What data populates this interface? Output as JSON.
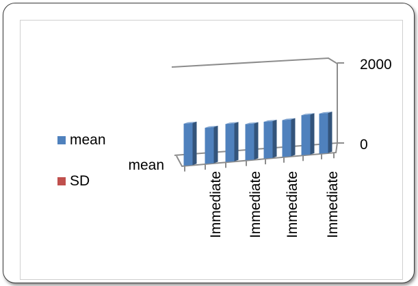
{
  "chart_data": {
    "type": "bar",
    "style": "3d-column",
    "categories": [
      "mean",
      "Immediate",
      "",
      "Immediate",
      "",
      "Immediate",
      "",
      "Immediate"
    ],
    "series": [
      {
        "name": "mean",
        "values": [
          1050,
          900,
          950,
          900,
          920,
          920,
          1000,
          1000
        ],
        "color": "#4f81bd"
      },
      {
        "name": "SD",
        "values": [
          40,
          40,
          40,
          40,
          40,
          40,
          40,
          40
        ],
        "color": "#c0504d"
      }
    ],
    "z_axis_tick_labels": [
      "mean"
    ],
    "yticks": [
      0,
      2000
    ],
    "ylim": [
      0,
      2000
    ],
    "grid": false,
    "legend_position": "left"
  }
}
